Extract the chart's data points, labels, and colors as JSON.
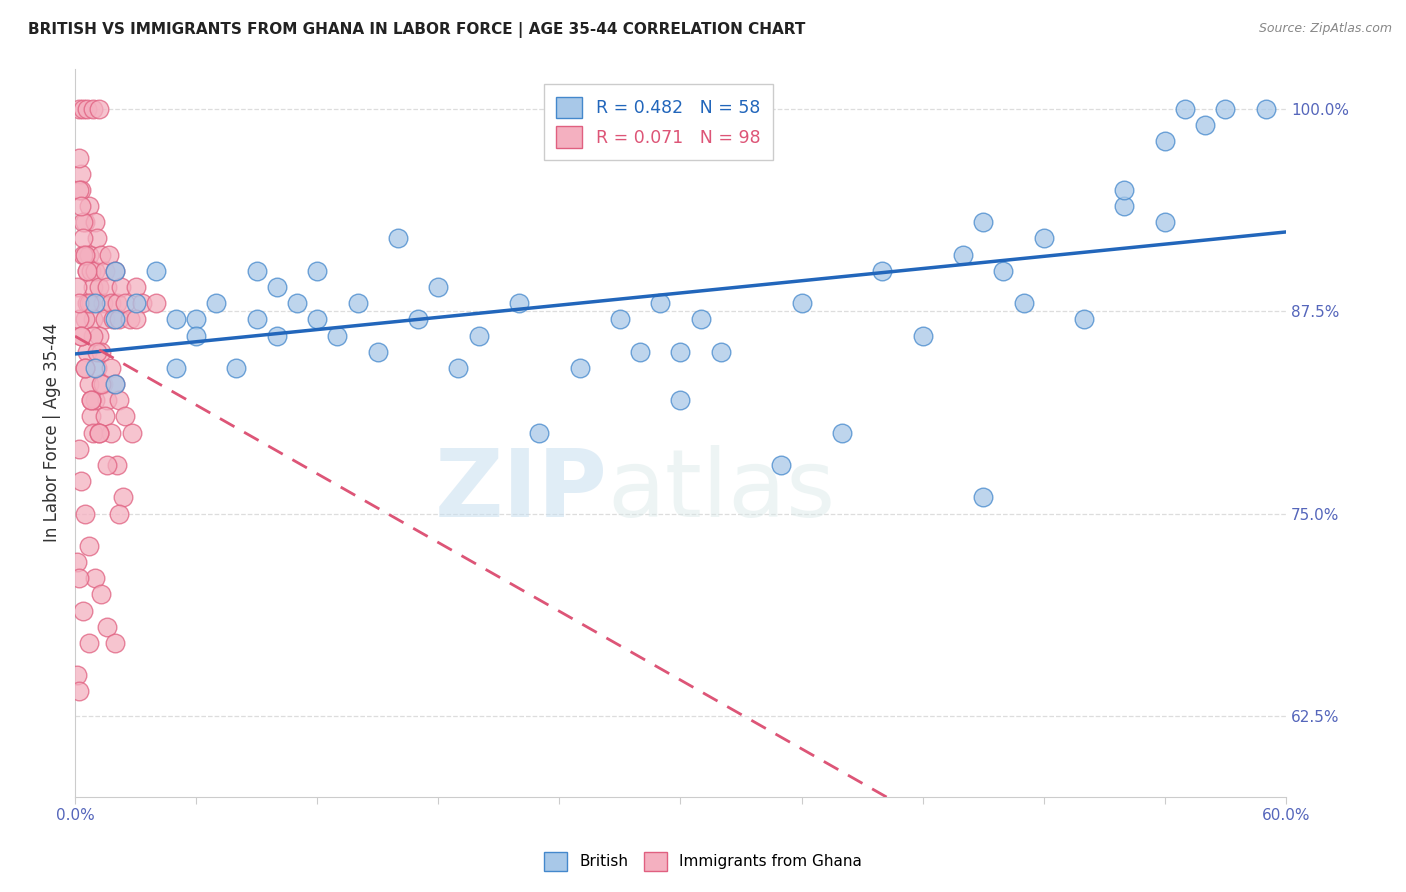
{
  "title": "BRITISH VS IMMIGRANTS FROM GHANA IN LABOR FORCE | AGE 35-44 CORRELATION CHART",
  "source": "Source: ZipAtlas.com",
  "ylabel": "In Labor Force | Age 35-44",
  "ylabel_ticks": [
    "100.0%",
    "87.5%",
    "75.0%",
    "62.5%"
  ],
  "ylabel_tick_vals": [
    1.0,
    0.875,
    0.75,
    0.625
  ],
  "xmin": 0.0,
  "xmax": 0.6,
  "ymin": 0.575,
  "ymax": 1.025,
  "british_R": 0.482,
  "british_N": 58,
  "ghana_R": 0.071,
  "ghana_N": 98,
  "british_color": "#a8c8e8",
  "ghana_color": "#f4b0c0",
  "british_edge_color": "#4488cc",
  "ghana_edge_color": "#e06080",
  "british_line_color": "#2266bb",
  "ghana_line_color": "#dd5577",
  "watermark_zip": "ZIP",
  "watermark_atlas": "atlas",
  "legend_label_british": "British",
  "legend_label_ghana": "Immigrants from Ghana",
  "british_x": [
    0.01,
    0.01,
    0.02,
    0.02,
    0.02,
    0.03,
    0.04,
    0.05,
    0.05,
    0.06,
    0.06,
    0.07,
    0.08,
    0.09,
    0.09,
    0.1,
    0.1,
    0.11,
    0.12,
    0.12,
    0.13,
    0.14,
    0.15,
    0.16,
    0.17,
    0.18,
    0.19,
    0.2,
    0.22,
    0.23,
    0.25,
    0.27,
    0.28,
    0.29,
    0.3,
    0.3,
    0.31,
    0.32,
    0.35,
    0.36,
    0.38,
    0.4,
    0.42,
    0.44,
    0.45,
    0.47,
    0.48,
    0.5,
    0.52,
    0.54,
    0.45,
    0.46,
    0.52,
    0.54,
    0.55,
    0.56,
    0.57,
    0.59
  ],
  "british_y": [
    0.88,
    0.84,
    0.9,
    0.87,
    0.83,
    0.88,
    0.9,
    0.87,
    0.84,
    0.87,
    0.86,
    0.88,
    0.84,
    0.9,
    0.87,
    0.89,
    0.86,
    0.88,
    0.87,
    0.9,
    0.86,
    0.88,
    0.85,
    0.92,
    0.87,
    0.89,
    0.84,
    0.86,
    0.88,
    0.8,
    0.84,
    0.87,
    0.85,
    0.88,
    0.82,
    0.85,
    0.87,
    0.85,
    0.78,
    0.88,
    0.8,
    0.9,
    0.86,
    0.91,
    0.76,
    0.88,
    0.92,
    0.87,
    0.94,
    0.98,
    0.93,
    0.9,
    0.95,
    0.93,
    1.0,
    0.99,
    1.0,
    1.0
  ],
  "ghana_x": [
    0.005,
    0.005,
    0.006,
    0.006,
    0.007,
    0.007,
    0.008,
    0.008,
    0.009,
    0.009,
    0.01,
    0.01,
    0.011,
    0.012,
    0.013,
    0.014,
    0.015,
    0.015,
    0.016,
    0.017,
    0.018,
    0.019,
    0.02,
    0.021,
    0.022,
    0.023,
    0.025,
    0.027,
    0.03,
    0.033,
    0.003,
    0.003,
    0.004,
    0.004,
    0.005,
    0.006,
    0.007,
    0.008,
    0.009,
    0.01,
    0.011,
    0.012,
    0.013,
    0.014,
    0.016,
    0.018,
    0.02,
    0.022,
    0.025,
    0.028,
    0.002,
    0.002,
    0.003,
    0.004,
    0.005,
    0.006,
    0.007,
    0.009,
    0.011,
    0.013,
    0.015,
    0.018,
    0.021,
    0.024,
    0.002,
    0.003,
    0.005,
    0.007,
    0.01,
    0.013,
    0.016,
    0.02,
    0.002,
    0.004,
    0.006,
    0.009,
    0.012,
    0.002,
    0.003,
    0.005,
    0.008,
    0.012,
    0.016,
    0.022,
    0.001,
    0.002,
    0.003,
    0.005,
    0.008,
    0.012,
    0.001,
    0.002,
    0.004,
    0.007,
    0.03,
    0.04,
    0.001,
    0.002
  ],
  "ghana_y": [
    0.93,
    0.91,
    0.9,
    0.88,
    0.94,
    0.91,
    0.9,
    0.88,
    0.89,
    0.87,
    0.93,
    0.9,
    0.92,
    0.89,
    0.91,
    0.88,
    0.9,
    0.87,
    0.89,
    0.91,
    0.88,
    0.87,
    0.9,
    0.88,
    0.87,
    0.89,
    0.88,
    0.87,
    0.89,
    0.88,
    0.96,
    0.95,
    0.93,
    0.91,
    0.87,
    0.85,
    0.83,
    0.81,
    0.8,
    0.82,
    0.84,
    0.86,
    0.85,
    0.83,
    0.82,
    0.84,
    0.83,
    0.82,
    0.81,
    0.8,
    0.97,
    0.95,
    0.94,
    0.92,
    0.91,
    0.9,
    0.88,
    0.86,
    0.85,
    0.83,
    0.81,
    0.8,
    0.78,
    0.76,
    0.79,
    0.77,
    0.75,
    0.73,
    0.71,
    0.7,
    0.68,
    0.67,
    1.0,
    1.0,
    1.0,
    1.0,
    1.0,
    0.87,
    0.86,
    0.84,
    0.82,
    0.8,
    0.78,
    0.75,
    0.89,
    0.88,
    0.86,
    0.84,
    0.82,
    0.8,
    0.72,
    0.71,
    0.69,
    0.67,
    0.87,
    0.88,
    0.65,
    0.64
  ]
}
